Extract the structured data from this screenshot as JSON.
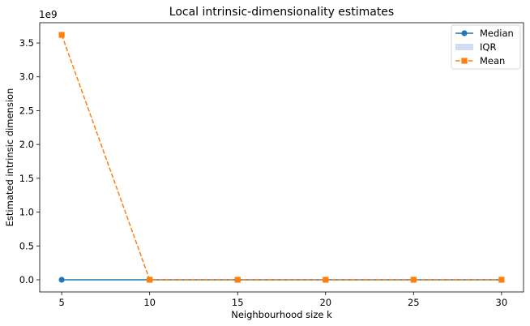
{
  "chart_data": {
    "type": "line",
    "title": "Local intrinsic-dimensionality estimates",
    "xlabel": "Neighbourhood size k",
    "ylabel": "Estimated intrinsic dimension",
    "y_offset_label": "1e9",
    "x": [
      5,
      10,
      15,
      20,
      25,
      30
    ],
    "xlim": [
      3.75,
      31.25
    ],
    "ylim": [
      -0.18,
      3.8
    ],
    "x_ticks": [
      5,
      10,
      15,
      20,
      25,
      30
    ],
    "y_ticks": [
      0.0,
      0.5,
      1.0,
      1.5,
      2.0,
      2.5,
      3.0,
      3.5
    ],
    "x_tick_labels": [
      "5",
      "10",
      "15",
      "20",
      "25",
      "30"
    ],
    "y_tick_labels": [
      "0.0",
      "0.5",
      "1.0",
      "1.5",
      "2.0",
      "2.5",
      "3.0",
      "3.5"
    ],
    "grid": false,
    "legend_position": "top-right",
    "series": [
      {
        "name": "Median",
        "values": [
          0,
          0,
          0,
          0,
          0,
          0
        ],
        "color": "#1f77b4",
        "marker": "circle",
        "line_style": "solid"
      },
      {
        "name": "IQR",
        "kind": "band",
        "lower": [
          0,
          0,
          0,
          0,
          0,
          0
        ],
        "upper": [
          0,
          0,
          0,
          0,
          0,
          0
        ],
        "color": "#aec7e8"
      },
      {
        "name": "Mean",
        "values": [
          3.62,
          0,
          0,
          0,
          0,
          0
        ],
        "color": "#ff7f0e",
        "marker": "square",
        "line_style": "dashed"
      }
    ]
  }
}
